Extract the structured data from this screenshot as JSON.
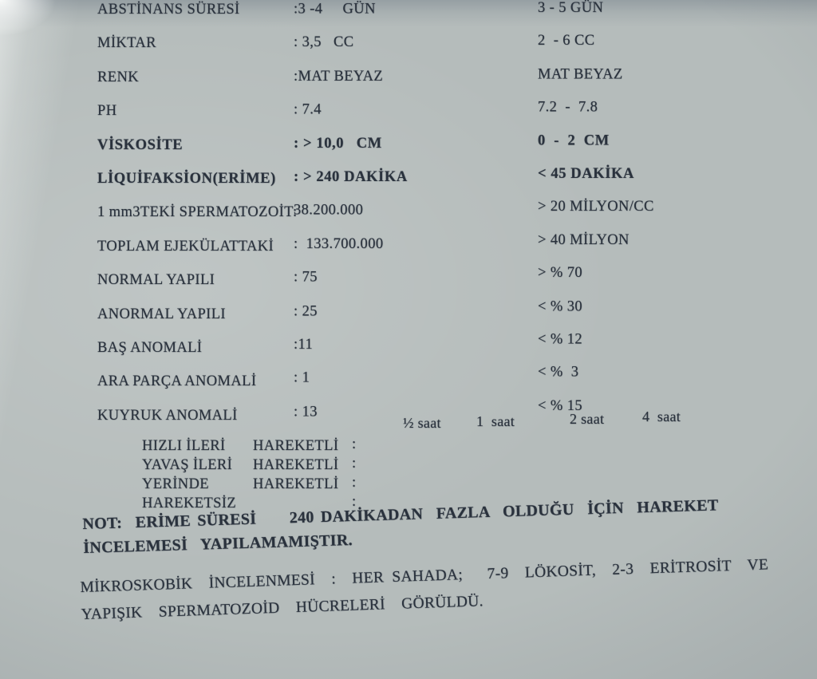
{
  "report": {
    "rows": [
      {
        "label": "ABSTİNANS SÜRESİ",
        "value": ":3 -4     GÜN",
        "reference": "3 - 5 GÜN",
        "bold": false
      },
      {
        "label": "MİKTAR",
        "value": ": 3,5   CC",
        "reference": "2  - 6 CC",
        "bold": false
      },
      {
        "label": "RENK",
        "value": ":MAT BEYAZ",
        "reference": "MAT BEYAZ",
        "bold": false
      },
      {
        "label": "PH",
        "value": ": 7.4",
        "reference": "7.2  -  7.8",
        "bold": false
      },
      {
        "label": "VİSKOSİTE",
        "value": ": > 10,0   CM",
        "reference": "0  -  2  CM",
        "bold": true
      },
      {
        "label": "LİQUİFAKSİON(ERİME)",
        "value": ": > 240 DAKİKA",
        "reference": "< 45 DAKİKA",
        "bold": true
      },
      {
        "label": "1 mm3TEKİ SPERMATOZOİT:",
        "value": "38.200.000",
        "reference": "> 20 MİLYON/CC",
        "bold": false
      },
      {
        "label": "TOPLAM EJEKÜLATTAKİ",
        "value": ":  133.700.000",
        "reference": "> 40 MİLYON",
        "bold": false
      },
      {
        "label": "NORMAL YAPILI",
        "value": ": 75",
        "reference": "> % 70",
        "bold": false
      },
      {
        "label": "ANORMAL YAPILI",
        "value": ": 25",
        "reference": "< % 30",
        "bold": false
      },
      {
        "label": "BAŞ ANOMALİ",
        "value": ":11",
        "reference": "< % 12",
        "bold": false
      },
      {
        "label": "ARA PARÇA ANOMALİ",
        "value": ": 1",
        "reference": "< %  3",
        "bold": false
      },
      {
        "label": "KUYRUK ANOMALİ",
        "value": ": 13",
        "reference": "< % 15",
        "bold": false
      }
    ],
    "time_header": [
      "½ saat",
      "1  saat",
      "2 saat",
      "4  saat"
    ],
    "motility_rows": [
      {
        "part1": "HIZLI İLERİ",
        "part2": "HAREKETLİ",
        "colon": ":"
      },
      {
        "part1": "YAVAŞ İLERİ",
        "part2": "HAREKETLİ",
        "colon": ":"
      },
      {
        "part1": "YERİNDE",
        "part2": "HAREKETLİ",
        "colon": ":"
      },
      {
        "part1": "HAREKETSİZ",
        "part2": "",
        "colon": ":"
      }
    ],
    "note": {
      "line1": "NOT:  ERİME SÜRESİ     240 DAKİKADAN  FAZLA  OLDUĞU  İÇİN  HAREKET",
      "line2": "İNCELEMESİ  YAPILAMAMIŞTIR."
    },
    "microscopy": {
      "line1": "MİKROSKOBİK  İNCELENMESİ  :  HER SAHADA;   7-9  LÖKOSİT,  2-3  ERİTROSİT  VE",
      "line2": "YAPIŞIK  SPERMATOZOİD  HÜCRELERİ  GÖRÜLDÜ."
    }
  },
  "colors": {
    "paper": "#b5bcbb",
    "ink": "#2a323d"
  }
}
